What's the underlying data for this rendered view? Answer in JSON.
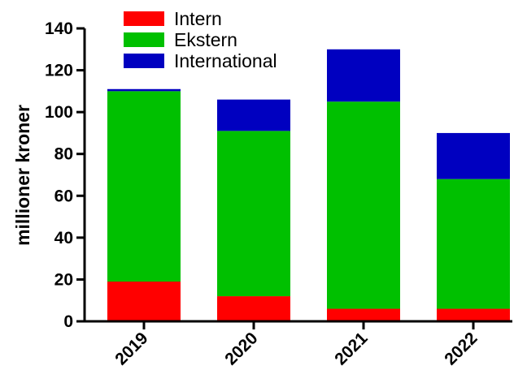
{
  "chart_data": {
    "type": "bar",
    "stacked": true,
    "categories": [
      "2019",
      "2020",
      "2021",
      "2022"
    ],
    "series": [
      {
        "name": "Intern",
        "color": "#ff0000",
        "values": [
          19,
          12,
          6,
          6
        ]
      },
      {
        "name": "Ekstern",
        "color": "#00c000",
        "values": [
          91,
          79,
          99,
          62
        ]
      },
      {
        "name": "International",
        "color": "#0000c0",
        "values": [
          1,
          15,
          25,
          22
        ]
      }
    ],
    "title": "",
    "xlabel": "",
    "ylabel": "millioner kroner",
    "ylim": [
      0,
      140
    ],
    "yticks": [
      0,
      20,
      40,
      60,
      80,
      100,
      120,
      140
    ],
    "grid": false,
    "legend_position": "top-left"
  }
}
